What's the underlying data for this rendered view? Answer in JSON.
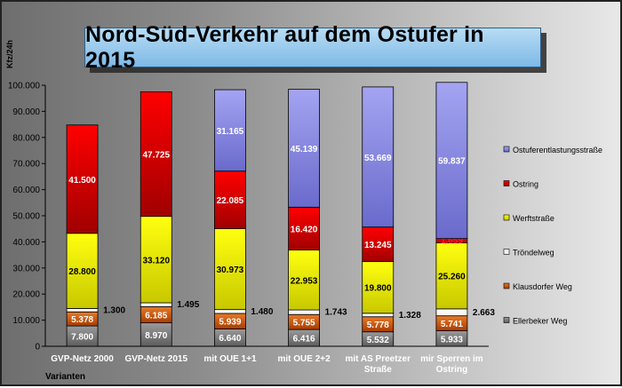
{
  "chart_data": {
    "type": "bar",
    "stacked": true,
    "title": "Nord-Süd-Verkehr auf dem Ostufer in 2015",
    "ylabel": "Kfz/24h",
    "xlabel": "Varianten",
    "ylim": [
      0,
      100000
    ],
    "yticks": [
      "0",
      "10.000",
      "20.000",
      "30.000",
      "40.000",
      "50.000",
      "60.000",
      "70.000",
      "80.000",
      "90.000",
      "100.000"
    ],
    "categories": [
      [
        "GVP-Netz 2000"
      ],
      [
        "GVP-Netz 2015"
      ],
      [
        "mit OUE 1+1"
      ],
      [
        "mit OUE 2+2"
      ],
      [
        "mit AS Preetzer",
        "Straße"
      ],
      [
        "mir Sperren im",
        "Ostring"
      ]
    ],
    "legend_position": "right",
    "series": [
      {
        "name": "Ellerbeker Weg",
        "color": "#808080",
        "values": [
          7800,
          8970,
          6640,
          6416,
          5532,
          5933
        ],
        "labels": [
          "7.800",
          "8.970",
          "6.640",
          "6.416",
          "5.532",
          "5.933"
        ]
      },
      {
        "name": "Klausdorfer Weg",
        "color": "#e05a10",
        "values": [
          5378,
          6185,
          5939,
          5755,
          5778,
          5741
        ],
        "labels": [
          "5.378",
          "6.185",
          "5.939",
          "5.755",
          "5.778",
          "5.741"
        ]
      },
      {
        "name": "Tröndelweg",
        "color": "#ffffff",
        "values": [
          1300,
          1495,
          1480,
          1743,
          1328,
          2663
        ],
        "labels": [
          "1.300",
          "1.495",
          "1.480",
          "1.743",
          "1.328",
          "2.663"
        ]
      },
      {
        "name": "Werftstraße",
        "color": "#e6e600",
        "values": [
          28800,
          33120,
          30973,
          22953,
          19800,
          25260
        ],
        "labels": [
          "28.800",
          "33.120",
          "30.973",
          "22.953",
          "19.800",
          "25.260"
        ]
      },
      {
        "name": "Ostring",
        "color": "#dd0000",
        "values": [
          41500,
          47725,
          22085,
          16420,
          13245,
          1659
        ],
        "labels": [
          "41.500",
          "47.725",
          "22.085",
          "16.420",
          "13.245",
          "1.659"
        ]
      },
      {
        "name": "Ostuferentlastungsstraße",
        "color": "#8f8fe8",
        "values": [
          0,
          0,
          31165,
          45139,
          53669,
          59837
        ],
        "labels": [
          "",
          "",
          "31.165",
          "45.139",
          "53.669",
          "59.837"
        ]
      }
    ]
  }
}
